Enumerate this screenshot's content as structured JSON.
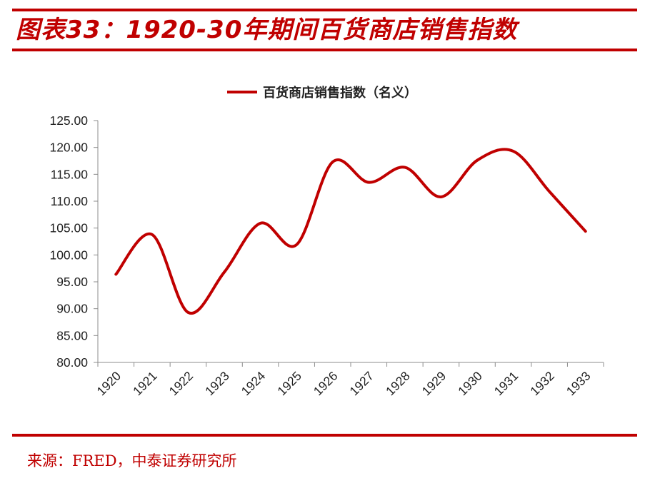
{
  "header": {
    "title": "图表33：1920-30年期间百货商店销售指数"
  },
  "footer": {
    "source": "来源：FRED，中泰证券研究所"
  },
  "colors": {
    "accent": "#c00000",
    "series": "#c00000"
  },
  "chart_data": {
    "type": "line",
    "title": "",
    "xlabel": "",
    "ylabel": "",
    "categories": [
      "1920",
      "1921",
      "1922",
      "1923",
      "1924",
      "1925",
      "1926",
      "1927",
      "1928",
      "1929",
      "1930",
      "1931",
      "1932",
      "1933"
    ],
    "ylim": [
      80,
      125
    ],
    "yticks": [
      "80.00",
      "85.00",
      "90.00",
      "95.00",
      "100.00",
      "105.00",
      "110.00",
      "115.00",
      "120.00",
      "125.00"
    ],
    "legend_position": "top-center",
    "grid": false,
    "series": [
      {
        "name": "百货商店销售指数（名义）",
        "smooth": true,
        "values": [
          96.4,
          103.8,
          89.3,
          96.8,
          105.9,
          101.9,
          117.3,
          113.5,
          116.3,
          110.8,
          117.6,
          119.3,
          111.8,
          104.4
        ]
      }
    ]
  }
}
